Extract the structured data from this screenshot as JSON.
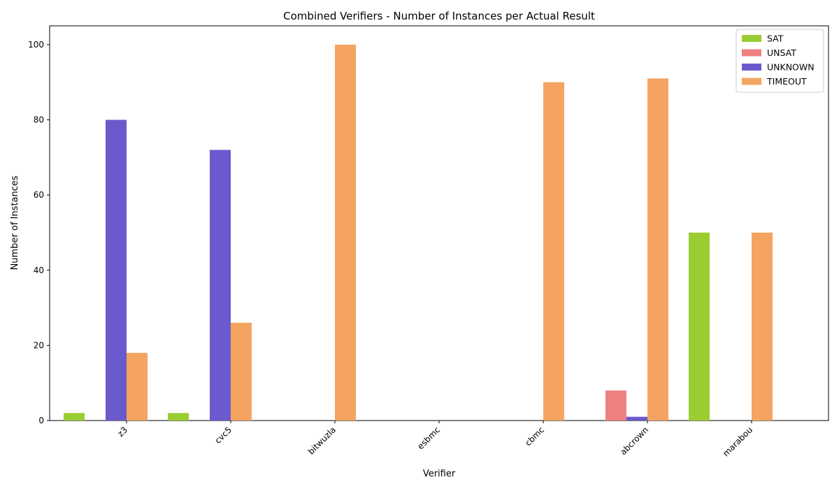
{
  "chart_data": {
    "type": "bar",
    "title": "Combined Verifiers - Number of Instances per Actual Result",
    "xlabel": "Verifier",
    "ylabel": "Number of Instances",
    "categories": [
      "z3",
      "cvc5",
      "bitwuzla",
      "esbmc",
      "cbmc",
      "abcrown",
      "marabou"
    ],
    "series": [
      {
        "name": "SAT",
        "color": "#9acd32",
        "values": [
          2,
          2,
          0,
          0,
          0,
          0,
          50
        ]
      },
      {
        "name": "UNSAT",
        "color": "#f08080",
        "values": [
          0,
          0,
          0,
          0,
          0,
          8,
          0
        ]
      },
      {
        "name": "UNKNOWN",
        "color": "#6a5acd",
        "values": [
          80,
          72,
          0,
          0,
          0,
          1,
          0
        ]
      },
      {
        "name": "TIMEOUT",
        "color": "#f4a460",
        "values": [
          18,
          26,
          100,
          0,
          90,
          91,
          50
        ]
      }
    ],
    "ylim": [
      0,
      105
    ],
    "yticks": [
      0,
      20,
      40,
      60,
      80,
      100
    ],
    "legend_position": "top-right",
    "grid": false
  }
}
